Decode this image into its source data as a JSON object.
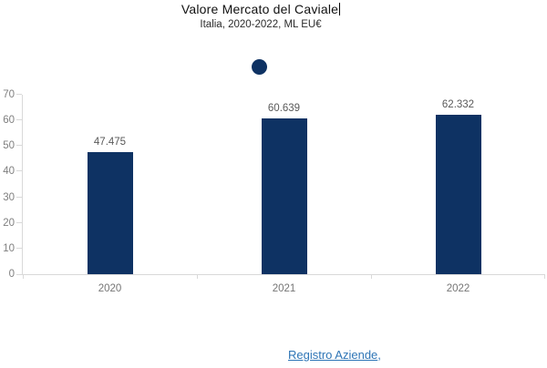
{
  "chart_data": {
    "type": "bar",
    "title": "Valore Mercato del Caviale",
    "subtitle": "Italia, 2020-2022, ML EU€",
    "categories": [
      "2020",
      "2021",
      "2022"
    ],
    "values": [
      47.475,
      60.639,
      62.332
    ],
    "data_labels": [
      "47.475",
      "60.639",
      "62.332"
    ],
    "xlabel": "",
    "ylabel": "",
    "ylim": [
      0,
      70
    ],
    "yticks": [
      0,
      10,
      20,
      30,
      40,
      50,
      60,
      70
    ],
    "grid": false,
    "legend": {
      "visible": true,
      "label": "",
      "position": "top-center"
    },
    "colors": {
      "bar": "#0e3263",
      "axis": "#d9d9d9",
      "value_label": "#595959",
      "tick_label": "#7f7f7f"
    }
  },
  "footer": {
    "link_text": "Registro Aziende",
    "suffix": ",",
    "link_color": "#2e75b6"
  }
}
